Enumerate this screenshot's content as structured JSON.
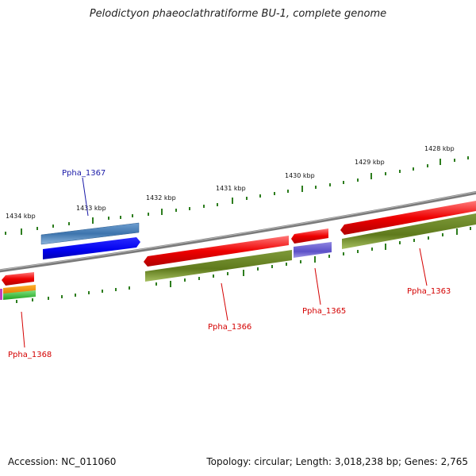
{
  "title": "Pelodictyon phaeoclathratiforme BU-1, complete genome",
  "footer": {
    "accession": "Accession: NC_011060",
    "topology": "Topology: circular; Length: 3,018,238 bp; Genes: 2,765"
  },
  "colors": {
    "backbone": "#7a7a7a",
    "tick": "#2d7d1e",
    "label_red": "#d40000",
    "label_blue": "#1a1aa8"
  },
  "kbp_ticks": [
    "1428 kbp",
    "1429 kbp",
    "1430 kbp",
    "1431 kbp",
    "1432 kbp",
    "1433 kbp",
    "1434 kbp"
  ],
  "genes": [
    {
      "label": "Ppha_1363",
      "label_color": "red"
    },
    {
      "label": "Ppha_1365",
      "label_color": "red"
    },
    {
      "label": "Ppha_1366",
      "label_color": "red"
    },
    {
      "label": "Ppha_1367",
      "label_color": "blue"
    },
    {
      "label": "Ppha_1368",
      "label_color": "red"
    }
  ]
}
